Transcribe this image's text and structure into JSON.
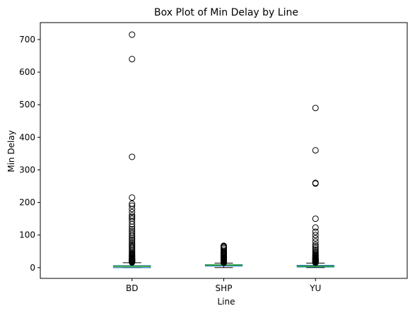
{
  "chart_data": {
    "type": "box",
    "title": "Box Plot of Min Delay by Line",
    "xlabel": "Line",
    "ylabel": "Min Delay",
    "ylim": [
      -33,
      752
    ],
    "yticks": [
      0,
      100,
      200,
      300,
      400,
      500,
      600,
      700
    ],
    "ytick_labels": [
      "0",
      "100",
      "200",
      "300",
      "400",
      "500",
      "600",
      "700"
    ],
    "grid": false,
    "categories": [
      "BD",
      "SHP",
      "YU"
    ],
    "series": [
      {
        "label": "BD",
        "whisker_low": 0,
        "q1": 0,
        "median": 4,
        "q3": 6,
        "whisker_high": 15,
        "outliers": [
          16,
          17,
          18,
          19,
          20,
          21,
          22,
          23,
          24,
          25,
          26,
          27,
          28,
          30,
          32,
          34,
          36,
          38,
          40,
          43,
          46,
          50,
          54,
          58,
          62,
          66,
          70,
          75,
          80,
          85,
          90,
          95,
          100,
          106,
          112,
          118,
          125,
          133,
          142,
          150,
          155,
          160,
          170,
          180,
          190,
          196,
          215,
          340,
          640,
          715
        ]
      },
      {
        "label": "SHP",
        "whisker_low": 0,
        "q1": 5,
        "median": 8,
        "q3": 9,
        "whisker_high": 14,
        "outliers": [
          15,
          16,
          17,
          18,
          19,
          20,
          21,
          22,
          23,
          24,
          25,
          26,
          27,
          28,
          29,
          30,
          32,
          34,
          36,
          38,
          40,
          42,
          44,
          46,
          50,
          55,
          60,
          63,
          65,
          67
        ]
      },
      {
        "label": "YU",
        "whisker_low": 0,
        "q1": 2,
        "median": 4,
        "q3": 7,
        "whisker_high": 14,
        "outliers": [
          15,
          16,
          17,
          18,
          19,
          20,
          21,
          22,
          23,
          24,
          25,
          26,
          27,
          28,
          29,
          30,
          32,
          34,
          36,
          38,
          40,
          43,
          46,
          50,
          55,
          60,
          65,
          70,
          80,
          90,
          100,
          110,
          123,
          150,
          258,
          260,
          360,
          490
        ]
      }
    ],
    "colors": {
      "box": "#1f77b4",
      "median": "#2ca02c",
      "whisker": "#000000",
      "outlier_edge": "#000000"
    }
  }
}
